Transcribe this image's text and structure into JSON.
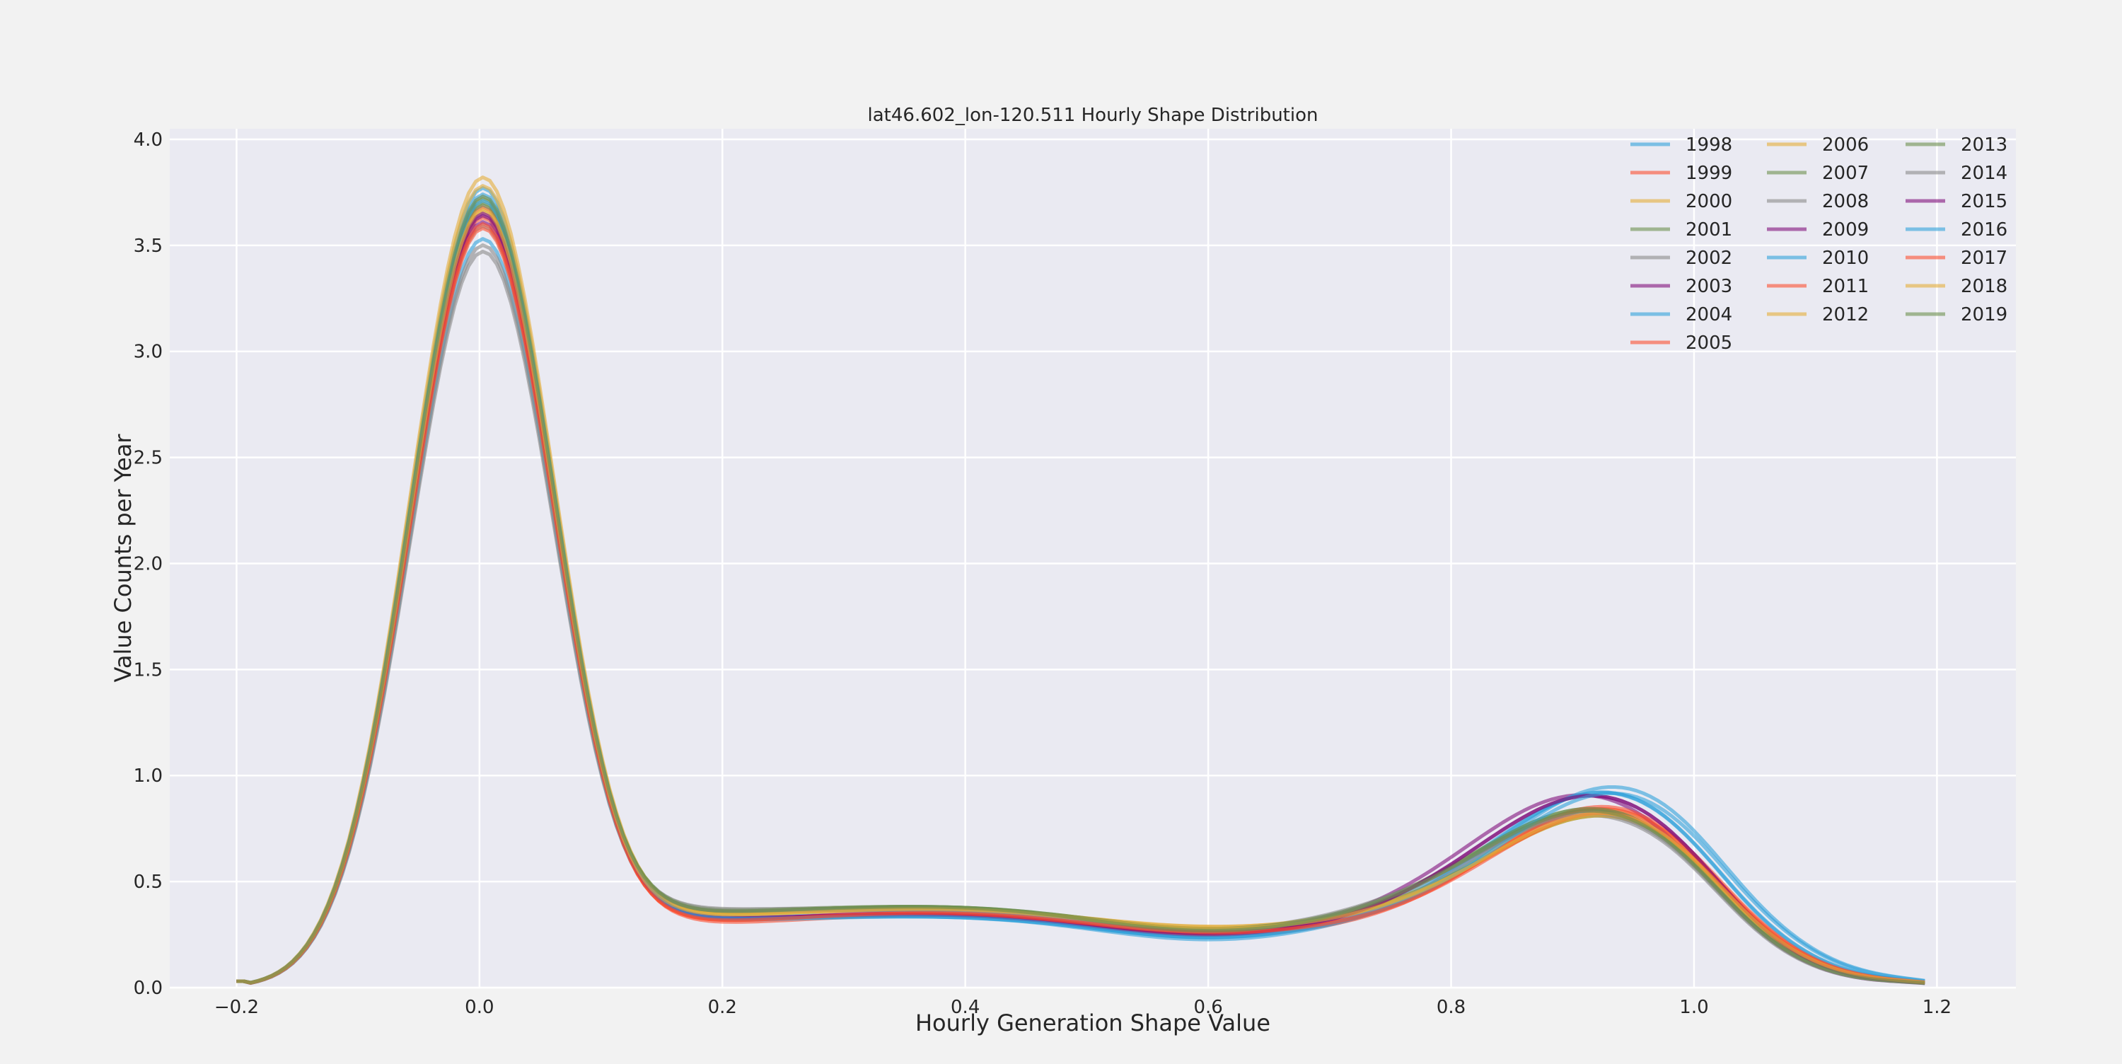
{
  "chart_data": {
    "type": "line",
    "title": "lat46.602_lon-120.511 Hourly Shape Distribution",
    "xlabel": "Hourly Generation Shape Value",
    "ylabel": "Value Counts per Year",
    "xlim": [
      -0.255,
      1.265
    ],
    "ylim": [
      0,
      4.05
    ],
    "xticks": [
      -0.2,
      0.0,
      0.2,
      0.4,
      0.6,
      0.8,
      1.0,
      1.2
    ],
    "xtick_labels": [
      "−0.2",
      "0.0",
      "0.2",
      "0.4",
      "0.6",
      "0.8",
      "1.0",
      "1.2"
    ],
    "yticks": [
      0.0,
      0.5,
      1.0,
      1.5,
      2.0,
      2.5,
      3.0,
      3.5,
      4.0
    ],
    "ytick_labels": [
      "0.0",
      "0.5",
      "1.0",
      "1.5",
      "2.0",
      "2.5",
      "3.0",
      "3.5",
      "4.0"
    ],
    "grid": true,
    "legend_position": "top-right",
    "legend_columns": 3,
    "x_range": [
      -0.2,
      1.19
    ],
    "series": [
      {
        "name": "1998",
        "color": "#30a2da",
        "peak1": 3.79,
        "trough": 0.34,
        "hump": 0.36,
        "valley": 0.24,
        "peak2": 0.84,
        "peak2_x": 0.93
      },
      {
        "name": "1999",
        "color": "#fc4f30",
        "peak1": 3.65,
        "trough": 0.31,
        "hump": 0.38,
        "valley": 0.26,
        "peak2": 0.8,
        "peak2_x": 0.92
      },
      {
        "name": "2000",
        "color": "#e5ae38",
        "peak1": 3.84,
        "trough": 0.35,
        "hump": 0.39,
        "valley": 0.28,
        "peak2": 0.79,
        "peak2_x": 0.93
      },
      {
        "name": "2001",
        "color": "#6d904f",
        "peak1": 3.72,
        "trough": 0.37,
        "hump": 0.4,
        "valley": 0.27,
        "peak2": 0.76,
        "peak2_x": 0.92
      },
      {
        "name": "2002",
        "color": "#8b8b8b",
        "peak1": 3.49,
        "trough": 0.36,
        "hump": 0.38,
        "valley": 0.25,
        "peak2": 0.74,
        "peak2_x": 0.92
      },
      {
        "name": "2003",
        "color": "#810f7c",
        "peak1": 3.66,
        "trough": 0.32,
        "hump": 0.37,
        "valley": 0.26,
        "peak2": 0.86,
        "peak2_x": 0.91
      },
      {
        "name": "2004",
        "color": "#30a2da",
        "peak1": 3.55,
        "trough": 0.33,
        "hump": 0.35,
        "valley": 0.23,
        "peak2": 0.87,
        "peak2_x": 0.94
      },
      {
        "name": "2005",
        "color": "#fc4f30",
        "peak1": 3.7,
        "trough": 0.3,
        "hump": 0.36,
        "valley": 0.25,
        "peak2": 0.82,
        "peak2_x": 0.93
      },
      {
        "name": "2006",
        "color": "#e5ae38",
        "peak1": 3.68,
        "trough": 0.34,
        "hump": 0.39,
        "valley": 0.29,
        "peak2": 0.78,
        "peak2_x": 0.93
      },
      {
        "name": "2007",
        "color": "#6d904f",
        "peak1": 3.74,
        "trough": 0.36,
        "hump": 0.4,
        "valley": 0.28,
        "peak2": 0.75,
        "peak2_x": 0.93
      },
      {
        "name": "2008",
        "color": "#8b8b8b",
        "peak1": 3.61,
        "trough": 0.38,
        "hump": 0.39,
        "valley": 0.28,
        "peak2": 0.73,
        "peak2_x": 0.92
      },
      {
        "name": "2009",
        "color": "#810f7c",
        "peak1": 3.63,
        "trough": 0.33,
        "hump": 0.36,
        "valley": 0.26,
        "peak2": 0.85,
        "peak2_x": 0.92
      },
      {
        "name": "2010",
        "color": "#30a2da",
        "peak1": 3.76,
        "trough": 0.32,
        "hump": 0.35,
        "valley": 0.24,
        "peak2": 0.86,
        "peak2_x": 0.93
      },
      {
        "name": "2011",
        "color": "#fc4f30",
        "peak1": 3.6,
        "trough": 0.31,
        "hump": 0.37,
        "valley": 0.26,
        "peak2": 0.81,
        "peak2_x": 0.93
      },
      {
        "name": "2012",
        "color": "#e5ae38",
        "peak1": 3.8,
        "trough": 0.35,
        "hump": 0.39,
        "valley": 0.29,
        "peak2": 0.77,
        "peak2_x": 0.93
      },
      {
        "name": "2013",
        "color": "#6d904f",
        "peak1": 3.71,
        "trough": 0.36,
        "hump": 0.4,
        "valley": 0.28,
        "peak2": 0.78,
        "peak2_x": 0.92
      },
      {
        "name": "2014",
        "color": "#8b8b8b",
        "peak1": 3.52,
        "trough": 0.37,
        "hump": 0.38,
        "valley": 0.27,
        "peak2": 0.74,
        "peak2_x": 0.92
      },
      {
        "name": "2015",
        "color": "#810f7c",
        "peak1": 3.67,
        "trough": 0.33,
        "hump": 0.36,
        "valley": 0.25,
        "peak2": 0.84,
        "peak2_x": 0.92
      },
      {
        "name": "2016",
        "color": "#30a2da",
        "peak1": 3.73,
        "trough": 0.33,
        "hump": 0.35,
        "valley": 0.24,
        "peak2": 0.85,
        "peak2_x": 0.94
      },
      {
        "name": "2017",
        "color": "#fc4f30",
        "peak1": 3.62,
        "trough": 0.31,
        "hump": 0.37,
        "valley": 0.26,
        "peak2": 0.79,
        "peak2_x": 0.93
      },
      {
        "name": "2018",
        "color": "#e5ae38",
        "peak1": 3.69,
        "trough": 0.34,
        "hump": 0.39,
        "valley": 0.28,
        "peak2": 0.78,
        "peak2_x": 0.93
      },
      {
        "name": "2019",
        "color": "#6d904f",
        "peak1": 3.75,
        "trough": 0.36,
        "hump": 0.4,
        "valley": 0.27,
        "peak2": 0.76,
        "peak2_x": 0.92
      }
    ]
  }
}
